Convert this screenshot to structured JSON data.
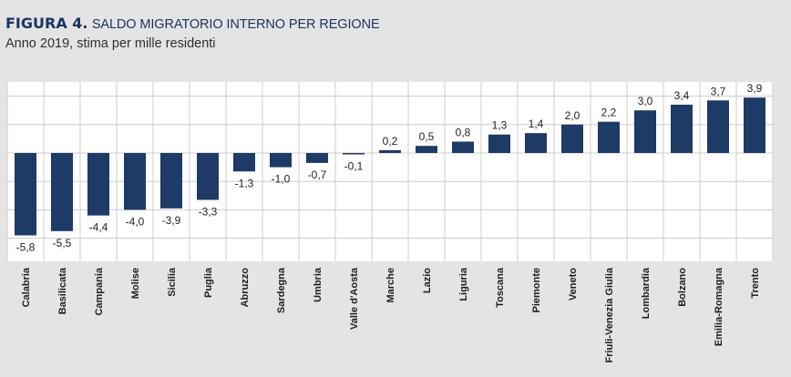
{
  "header": {
    "figure_label": "FIGURA 4.",
    "title": "SALDO MIGRATORIO INTERNO PER REGIONE",
    "subtitle": "Anno 2019, stima per mille residenti"
  },
  "colors": {
    "bar": "#1e3a66",
    "plot_background": "#ffffff",
    "page_background": "#e4e4e4",
    "grid": "#cccccc",
    "title": "#1c3461"
  },
  "chart_data": {
    "type": "bar",
    "title": "SALDO MIGRATORIO INTERNO PER REGIONE",
    "subtitle": "Anno 2019, stima per mille residenti",
    "categories": [
      "Calabria",
      "Basilicata",
      "Campania",
      "Molise",
      "Sicilia",
      "Puglia",
      "Abruzzo",
      "Sardegna",
      "Umbria",
      "Valle d'Aosta",
      "Marche",
      "Lazio",
      "Liguria",
      "Toscana",
      "Piemonte",
      "Veneto",
      "Friuli-Venezia Giulia",
      "Lombardia",
      "Bolzano",
      "Emilia-Romagna",
      "Trento"
    ],
    "values": [
      -5.8,
      -5.5,
      -4.4,
      -4.0,
      -3.9,
      -3.3,
      -1.3,
      -1.0,
      -0.7,
      -0.1,
      0.2,
      0.5,
      0.8,
      1.3,
      1.4,
      2.0,
      2.2,
      3.0,
      3.4,
      3.7,
      3.9
    ],
    "labels": [
      "-5,8",
      "-5,5",
      "-4,4",
      "-4,0",
      "-3,9",
      "-3,3",
      "-1,3",
      "-1,0",
      "-0,7",
      "-0,1",
      "0,2",
      "0,5",
      "0,8",
      "1,3",
      "1,4",
      "2,0",
      "2,2",
      "3,0",
      "3,4",
      "3,7",
      "3,9"
    ],
    "ylim": [
      -6,
      5
    ],
    "y_gridlines": [
      -6,
      -4,
      -2,
      0,
      2,
      4
    ],
    "grid": true,
    "legend": "none"
  }
}
